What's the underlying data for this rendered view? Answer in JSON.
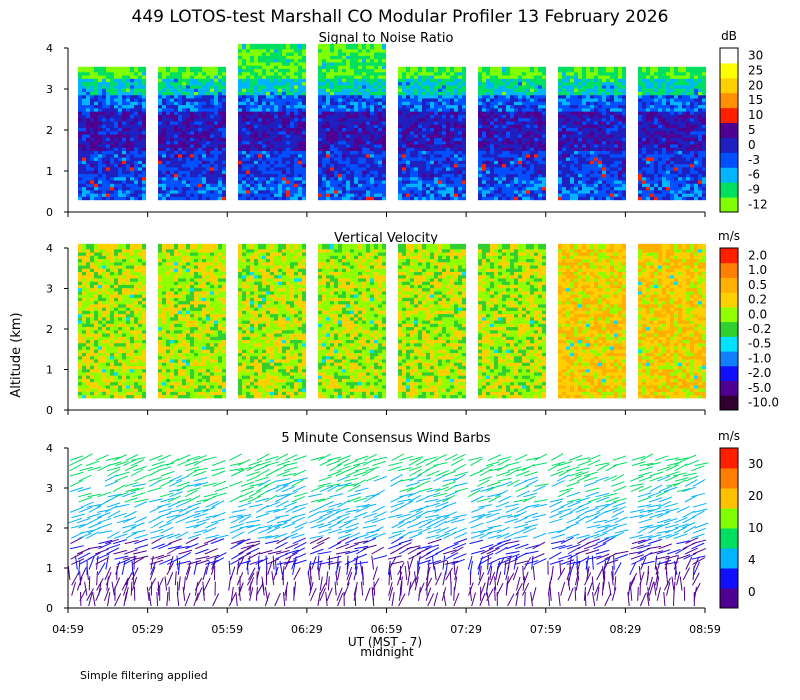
{
  "title": "449 LOTOS-test Marshall CO Modular Profiler 13 February 2026",
  "ylabel": "Altitude (km)",
  "xlabel": "UT (MST - 7)",
  "midnight_label": "midnight",
  "footnote": "Simple filtering applied",
  "chart_data": [
    {
      "type": "heatmap",
      "title": "Signal to Noise Ratio",
      "unit": "dB",
      "ylim": [
        0,
        4
      ],
      "yticks": [
        "0",
        "1",
        "2",
        "3",
        "4"
      ],
      "xticks": [
        "04:59",
        "05:29",
        "05:59",
        "06:29",
        "06:59",
        "07:29",
        "07:59",
        "08:29",
        "08:59"
      ],
      "colorbar": [
        "-12",
        "-9",
        "-6",
        "-3",
        "0",
        "5",
        "10",
        "15",
        "20",
        "25",
        "30"
      ],
      "colors": [
        "#80ff00",
        "#00e060",
        "#00b4ff",
        "#0050ff",
        "#2020c0",
        "#500090",
        "#ff2000",
        "#ff9000",
        "#ffd000",
        "#ffff00",
        "#ffffff"
      ]
    },
    {
      "type": "heatmap",
      "title": "Vertical Velocity",
      "unit": "m/s",
      "ylim": [
        0,
        4
      ],
      "yticks": [
        "0",
        "1",
        "2",
        "3",
        "4"
      ],
      "xticks": [
        "04:59",
        "05:29",
        "05:59",
        "06:29",
        "06:59",
        "07:29",
        "07:59",
        "08:29",
        "08:59"
      ],
      "colorbar": [
        "-10.0",
        "-5.0",
        "-2.0",
        "-1.0",
        "-0.5",
        "-0.2",
        "0.0",
        "0.2",
        "0.5",
        "1.0",
        "2.0"
      ],
      "colors": [
        "#300030",
        "#500090",
        "#1010ff",
        "#1080ff",
        "#00e0ff",
        "#30d030",
        "#90ff00",
        "#ffd000",
        "#ffb000",
        "#ff8000",
        "#ff2000"
      ]
    },
    {
      "type": "wind_barbs",
      "title": "5 Minute Consensus Wind Barbs",
      "unit": "m/s",
      "ylim": [
        0,
        4
      ],
      "yticks": [
        "0",
        "1",
        "2",
        "3",
        "4"
      ],
      "xticks": [
        "04:59",
        "05:29",
        "05:59",
        "06:29",
        "06:59",
        "07:29",
        "07:59",
        "08:29",
        "08:59"
      ],
      "colorbar": [
        "0",
        "4",
        "10",
        "20",
        "30"
      ],
      "colors": [
        "#500090",
        "#1010ff",
        "#00b4ff",
        "#00e060",
        "#80ff00",
        "#ffc000",
        "#ff8000",
        "#ff2000"
      ]
    }
  ]
}
